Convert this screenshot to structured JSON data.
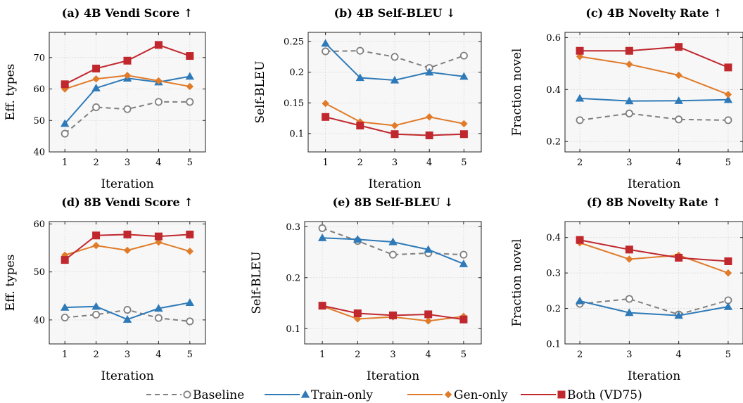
{
  "chart_data": [
    {
      "type": "line",
      "title": "(a) 4B Vendi Score ↑",
      "xlabel": "Iteration",
      "ylabel": "Eff. types",
      "x": [
        1,
        2,
        3,
        4,
        5
      ],
      "xlim": [
        0.5,
        5.5
      ],
      "ylim": [
        40,
        78
      ],
      "yticks": [
        40,
        50,
        60,
        70
      ],
      "ytick_labels": [
        "40",
        "50",
        "60",
        "70"
      ],
      "grid": true,
      "series": [
        {
          "name": "Baseline",
          "key": "baseline",
          "values": [
            45.8,
            54.2,
            53.6,
            55.9,
            55.9
          ]
        },
        {
          "name": "Train-only",
          "key": "train",
          "values": [
            49.0,
            60.3,
            63.4,
            62.2,
            64.0
          ]
        },
        {
          "name": "Gen-only",
          "key": "gen",
          "values": [
            60.0,
            63.2,
            64.3,
            62.6,
            60.8
          ]
        },
        {
          "name": "Both (VD75)",
          "key": "both",
          "values": [
            61.5,
            66.5,
            69.0,
            74.0,
            70.5
          ]
        }
      ]
    },
    {
      "type": "line",
      "title": "(b) 4B Self-BLEU ↓",
      "xlabel": "Iteration",
      "ylabel": "Self-BLEU",
      "x": [
        1,
        2,
        3,
        4,
        5
      ],
      "xlim": [
        0.5,
        5.5
      ],
      "ylim": [
        0.07,
        0.265
      ],
      "yticks": [
        0.1,
        0.15,
        0.2,
        0.25
      ],
      "ytick_labels": [
        "0.1",
        "0.15",
        "0.2",
        "0.25"
      ],
      "grid": true,
      "series": [
        {
          "name": "Baseline",
          "key": "baseline",
          "values": [
            0.234,
            0.235,
            0.225,
            0.207,
            0.227
          ]
        },
        {
          "name": "Train-only",
          "key": "train",
          "values": [
            0.247,
            0.191,
            0.187,
            0.2,
            0.193
          ]
        },
        {
          "name": "Gen-only",
          "key": "gen",
          "values": [
            0.149,
            0.119,
            0.113,
            0.127,
            0.116
          ]
        },
        {
          "name": "Both (VD75)",
          "key": "both",
          "values": [
            0.127,
            0.113,
            0.099,
            0.097,
            0.099
          ]
        }
      ]
    },
    {
      "type": "line",
      "title": "(c) 4B Novelty Rate ↑",
      "xlabel": "Iteration",
      "ylabel": "Fraction novel",
      "x": [
        2,
        3,
        4,
        5
      ],
      "xlim": [
        1.7,
        5.3
      ],
      "ylim": [
        0.16,
        0.62
      ],
      "yticks": [
        0.2,
        0.4,
        0.6
      ],
      "ytick_labels": [
        "0.2",
        "0.4",
        "0.6"
      ],
      "grid": true,
      "series": [
        {
          "name": "Baseline",
          "key": "baseline",
          "values": [
            0.282,
            0.308,
            0.285,
            0.282
          ]
        },
        {
          "name": "Train-only",
          "key": "train",
          "values": [
            0.366,
            0.356,
            0.357,
            0.361
          ]
        },
        {
          "name": "Gen-only",
          "key": "gen",
          "values": [
            0.527,
            0.497,
            0.455,
            0.381
          ]
        },
        {
          "name": "Both (VD75)",
          "key": "both",
          "values": [
            0.549,
            0.549,
            0.564,
            0.485
          ]
        }
      ]
    },
    {
      "type": "line",
      "title": "(d) 8B Vendi Score ↑",
      "xlabel": "Iteration",
      "ylabel": "Eff. types",
      "x": [
        1,
        2,
        3,
        4,
        5
      ],
      "xlim": [
        0.5,
        5.5
      ],
      "ylim": [
        35,
        60.5
      ],
      "yticks": [
        40,
        50,
        60
      ],
      "ytick_labels": [
        "40",
        "50",
        "60"
      ],
      "grid": true,
      "series": [
        {
          "name": "Baseline",
          "key": "baseline",
          "values": [
            40.5,
            41.1,
            42.1,
            40.4,
            39.7
          ]
        },
        {
          "name": "Train-only",
          "key": "train",
          "values": [
            42.6,
            42.8,
            40.1,
            42.4,
            43.6
          ]
        },
        {
          "name": "Gen-only",
          "key": "gen",
          "values": [
            53.5,
            55.5,
            54.5,
            56.2,
            54.3
          ]
        },
        {
          "name": "Both (VD75)",
          "key": "both",
          "values": [
            52.5,
            57.6,
            57.8,
            57.4,
            57.8
          ]
        }
      ]
    },
    {
      "type": "line",
      "title": "(e) 8B Self-BLEU ↓",
      "xlabel": "Iteration",
      "ylabel": "Self-BLEU",
      "x": [
        1,
        2,
        3,
        4,
        5
      ],
      "xlim": [
        0.5,
        5.5
      ],
      "ylim": [
        0.07,
        0.31
      ],
      "yticks": [
        0.1,
        0.2,
        0.3
      ],
      "ytick_labels": [
        "0.1",
        "0.2",
        "0.3"
      ],
      "grid": true,
      "series": [
        {
          "name": "Baseline",
          "key": "baseline",
          "values": [
            0.297,
            0.272,
            0.245,
            0.248,
            0.245
          ]
        },
        {
          "name": "Train-only",
          "key": "train",
          "values": [
            0.278,
            0.275,
            0.27,
            0.255,
            0.227
          ]
        },
        {
          "name": "Gen-only",
          "key": "gen",
          "values": [
            0.144,
            0.119,
            0.123,
            0.115,
            0.124
          ]
        },
        {
          "name": "Both (VD75)",
          "key": "both",
          "values": [
            0.145,
            0.13,
            0.126,
            0.128,
            0.118
          ]
        }
      ]
    },
    {
      "type": "line",
      "title": "(f) 8B Novelty Rate ↑",
      "xlabel": "Iteration",
      "ylabel": "Fraction novel",
      "x": [
        2,
        3,
        4,
        5
      ],
      "xlim": [
        1.7,
        5.3
      ],
      "ylim": [
        0.1,
        0.445
      ],
      "yticks": [
        0.1,
        0.2,
        0.3,
        0.4
      ],
      "ytick_labels": [
        "0.1",
        "0.2",
        "0.3",
        "0.4"
      ],
      "grid": true,
      "series": [
        {
          "name": "Baseline",
          "key": "baseline",
          "values": [
            0.213,
            0.227,
            0.183,
            0.223
          ]
        },
        {
          "name": "Train-only",
          "key": "train",
          "values": [
            0.221,
            0.188,
            0.18,
            0.205
          ]
        },
        {
          "name": "Gen-only",
          "key": "gen",
          "values": [
            0.385,
            0.339,
            0.35,
            0.3
          ]
        },
        {
          "name": "Both (VD75)",
          "key": "both",
          "values": [
            0.393,
            0.366,
            0.343,
            0.333
          ]
        }
      ]
    }
  ],
  "legend": {
    "placement": "bottom",
    "items": [
      {
        "key": "baseline",
        "label": "Baseline"
      },
      {
        "key": "train",
        "label": "Train-only"
      },
      {
        "key": "gen",
        "label": "Gen-only"
      },
      {
        "key": "both",
        "label": "Both (VD75)"
      }
    ]
  },
  "styles": {
    "baseline": {
      "color": "#7f7f7f",
      "marker": "circle-open",
      "dash": true
    },
    "train": {
      "color": "#2e7ab8",
      "marker": "triangle",
      "dash": false
    },
    "gen": {
      "color": "#e07b2a",
      "marker": "diamond",
      "dash": false
    },
    "both": {
      "color": "#c0282e",
      "marker": "square",
      "dash": false
    }
  }
}
